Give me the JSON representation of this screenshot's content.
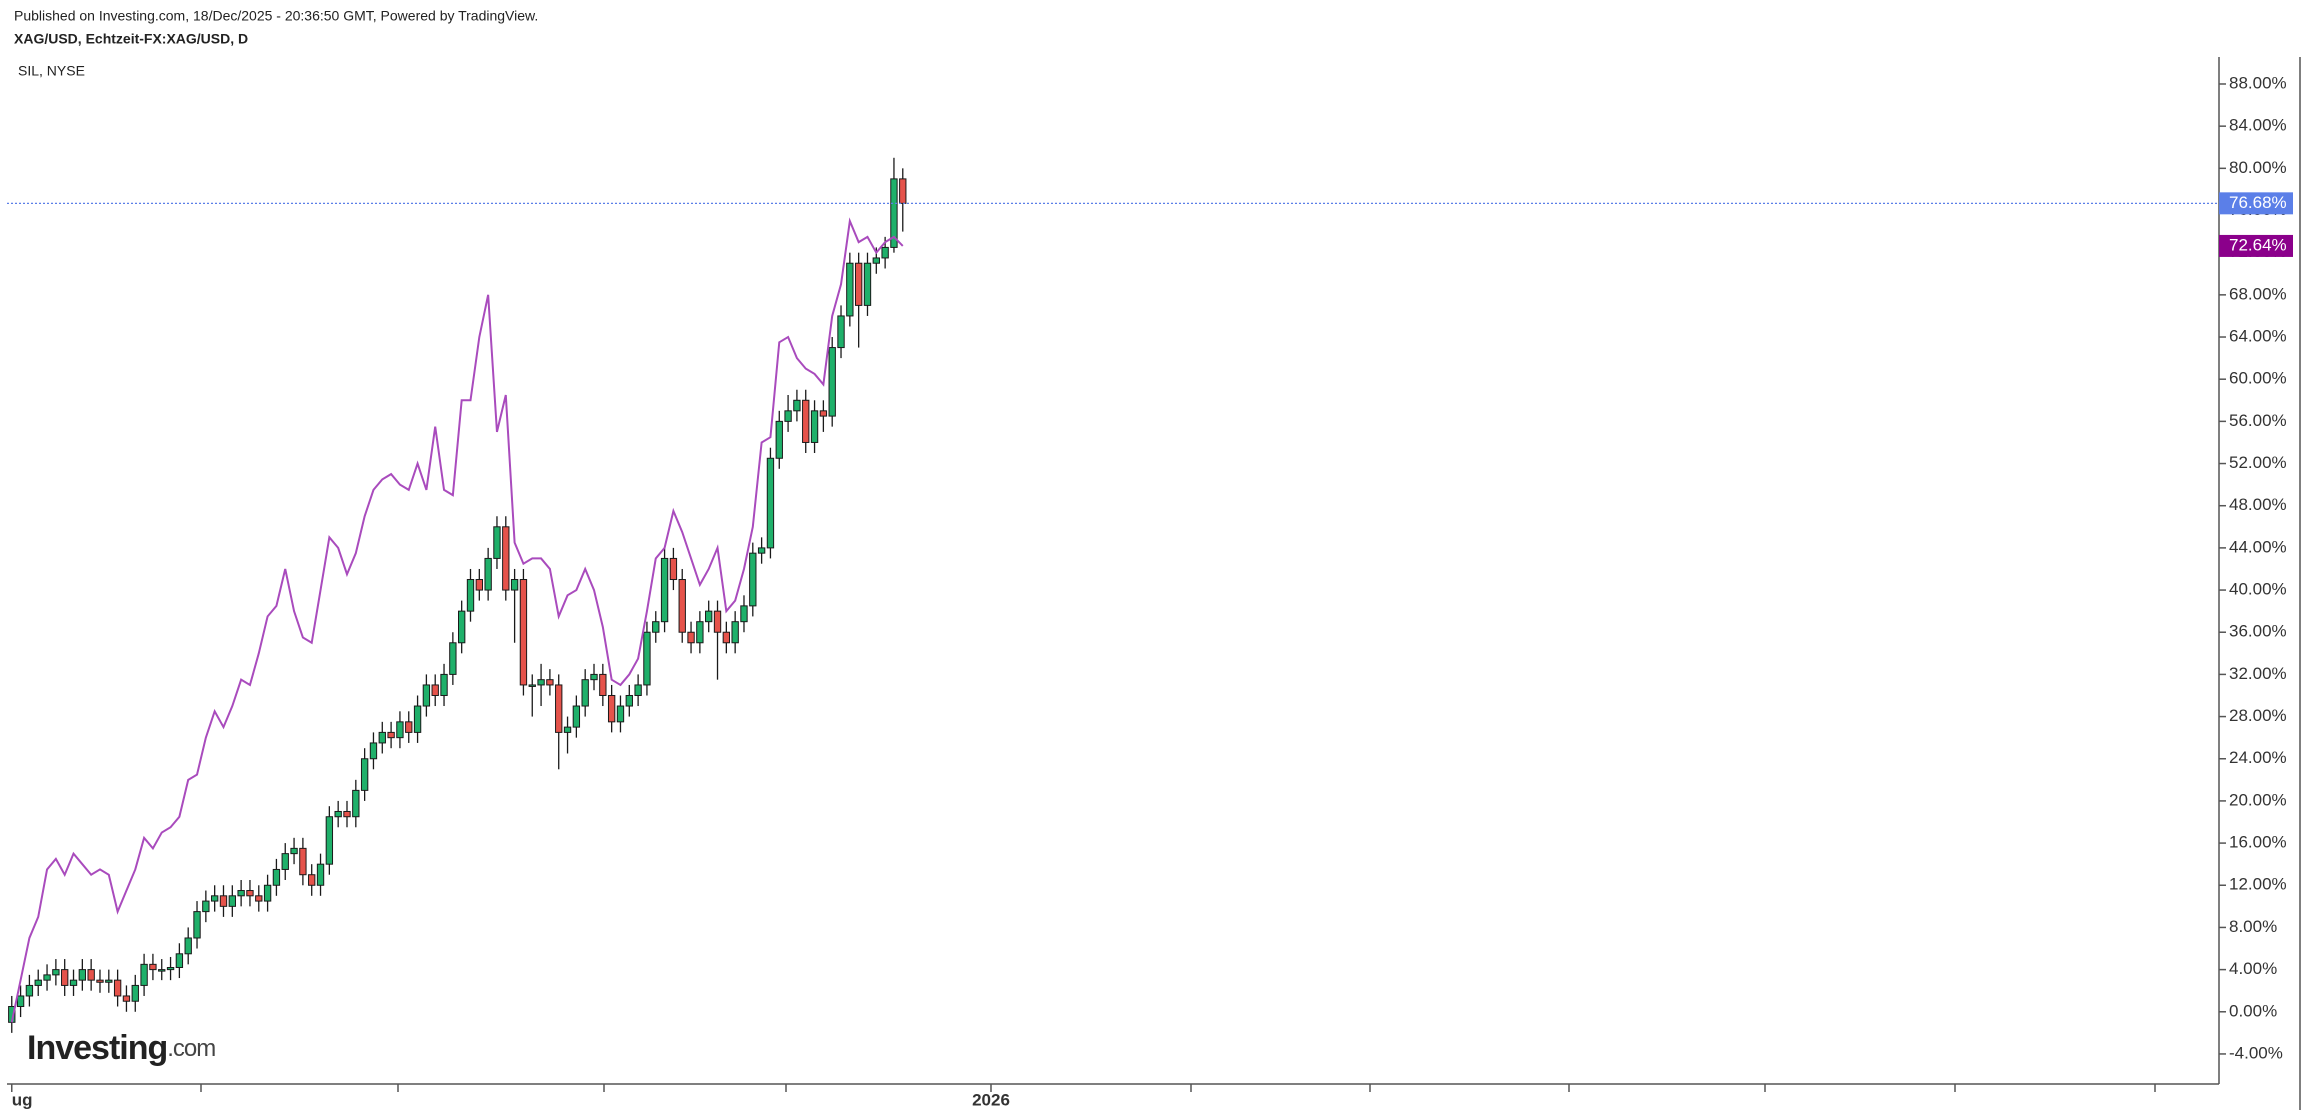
{
  "chart_data": {
    "type": "candlestick",
    "published": "Published on Investing.com, 18/Dec/2025 - 20:36:50 GMT, Powered by TradingView.",
    "logo": {
      "text": "Investing",
      "suffix": ".com"
    },
    "xlim": [
      -0.54,
      250.2
    ],
    "xticks": [
      {
        "value": 0,
        "label": "ug"
      },
      {
        "value": 111,
        "label": "2026"
      }
    ],
    "ylim": [
      -6.85,
      90.56
    ],
    "yticks": [
      {
        "value": -4,
        "label": "-4.00%"
      },
      {
        "value": 0,
        "label": "0.00%"
      },
      {
        "value": 4,
        "label": "4.00%"
      },
      {
        "value": 8,
        "label": "8.00%"
      },
      {
        "value": 12,
        "label": "12.00%"
      },
      {
        "value": 16,
        "label": "16.00%"
      },
      {
        "value": 20,
        "label": "20.00%"
      },
      {
        "value": 24,
        "label": "24.00%"
      },
      {
        "value": 28,
        "label": "28.00%"
      },
      {
        "value": 32,
        "label": "32.00%"
      },
      {
        "value": 36,
        "label": "36.00%"
      },
      {
        "value": 40,
        "label": "40.00%"
      },
      {
        "value": 44,
        "label": "44.00%"
      },
      {
        "value": 48,
        "label": "48.00%"
      },
      {
        "value": 52,
        "label": "52.00%"
      },
      {
        "value": 56,
        "label": "56.00%"
      },
      {
        "value": 60,
        "label": "60.00%"
      },
      {
        "value": 64,
        "label": "64.00%"
      },
      {
        "value": 68,
        "label": "68.00%"
      },
      {
        "value": 72,
        "label": "72.00%"
      },
      {
        "value": 76,
        "label": "76.00%"
      },
      {
        "value": 80,
        "label": "80.00%"
      },
      {
        "value": 84,
        "label": "84.00%"
      },
      {
        "value": 88,
        "label": "88.00%"
      }
    ],
    "series": [
      {
        "name": "XAG/USD, Echtzeit-FX:XAG/USD, D",
        "type": "candlestick",
        "up_color": "#1fb06a",
        "down_color": "#e5534b",
        "last_color": "#5b7fe8",
        "last_label": "76.68%",
        "open": [
          -1,
          0.5,
          1.5,
          2.5,
          3,
          3.5,
          4,
          2.5,
          3,
          4,
          3,
          2.8,
          3,
          1.5,
          1,
          2.5,
          4.5,
          4,
          4,
          4.2,
          5.5,
          7,
          9.5,
          10.5,
          11,
          10,
          11,
          11.5,
          11,
          10.5,
          12,
          13.5,
          15,
          15.5,
          13,
          12,
          14,
          18.5,
          19,
          18.5,
          21,
          24,
          25.5,
          26.5,
          26,
          27.5,
          26.5,
          29,
          31,
          30,
          32,
          35,
          38,
          41,
          40,
          43,
          46,
          40,
          41,
          31,
          31,
          31.5,
          31,
          26.5,
          27,
          29,
          31.5,
          32,
          30,
          27.5,
          29,
          30,
          31,
          36,
          37,
          43,
          41,
          36,
          35,
          37,
          38,
          36,
          35,
          37,
          38.5,
          43.5,
          44,
          52.5,
          56,
          57,
          58,
          54,
          57,
          56.5,
          63,
          66,
          71,
          67,
          71,
          71.5,
          72.5,
          79
        ],
        "high": [
          1.5,
          2.5,
          3.5,
          4,
          4.5,
          5,
          5,
          4,
          5,
          5,
          4,
          4,
          4,
          2.5,
          3.5,
          5.5,
          5.5,
          5,
          5.2,
          6.5,
          8,
          10.5,
          11.5,
          12,
          12,
          12,
          12.5,
          12.5,
          12,
          13,
          14.5,
          16,
          16.5,
          16.5,
          14,
          15,
          19.5,
          20,
          20,
          22,
          25,
          26.5,
          27.5,
          27.5,
          28.5,
          28.5,
          30,
          32,
          32,
          33,
          36,
          39,
          42,
          42,
          44,
          47,
          47,
          42,
          42,
          32,
          33,
          32.5,
          32,
          28,
          30,
          32.5,
          33,
          33,
          31,
          30,
          31,
          32,
          37,
          38,
          44,
          44,
          42,
          37,
          38,
          39,
          39,
          37,
          38,
          39.5,
          44.5,
          45,
          53.5,
          57,
          58.5,
          59,
          59,
          58,
          58,
          64,
          67,
          72,
          72,
          72,
          72.5,
          73.5,
          81,
          80
        ],
        "low": [
          -2,
          -0.5,
          0.5,
          1.5,
          2,
          2.5,
          1.5,
          1.5,
          2,
          2,
          1.8,
          1.8,
          0.5,
          0,
          0,
          1.5,
          3,
          3,
          3,
          3.2,
          4.5,
          6,
          8.5,
          9.5,
          9,
          9,
          10,
          10,
          9.5,
          9.5,
          11,
          12.5,
          14,
          12,
          11,
          11,
          13,
          17.5,
          17.5,
          17.5,
          20,
          23,
          24.5,
          25,
          25,
          25.5,
          25.5,
          28,
          29,
          29,
          31,
          34,
          37,
          39,
          39,
          42,
          39,
          35,
          30,
          28,
          29,
          30,
          23,
          24.5,
          26,
          28,
          30.5,
          29,
          26.5,
          26.5,
          28,
          29,
          30,
          35,
          36,
          40,
          35,
          34,
          34,
          36,
          31.5,
          34,
          34,
          36,
          37.5,
          42.5,
          43,
          51.5,
          55,
          56,
          53,
          53,
          55,
          55.5,
          62,
          65,
          63,
          66,
          70,
          70.5,
          72,
          74
        ],
        "close": [
          0.5,
          1.5,
          2.5,
          3,
          3.5,
          4,
          2.5,
          3,
          4,
          3,
          2.8,
          3,
          1.5,
          1,
          2.5,
          4.5,
          4,
          4,
          4.2,
          5.5,
          7,
          9.5,
          10.5,
          11,
          10,
          11,
          11.5,
          11,
          10.5,
          12,
          13.5,
          15,
          15.5,
          13,
          12,
          14,
          18.5,
          19,
          18.5,
          21,
          24,
          25.5,
          26.5,
          26,
          27.5,
          26.5,
          29,
          31,
          30,
          32,
          35,
          38,
          41,
          40,
          43,
          46,
          40,
          41,
          31,
          31,
          31.5,
          31,
          26.5,
          27,
          29,
          31.5,
          32,
          30,
          27.5,
          29,
          30,
          31,
          36,
          37,
          43,
          41,
          36,
          35,
          37,
          38,
          36,
          35,
          37,
          38.5,
          43.5,
          44,
          52.5,
          56,
          57,
          58,
          54,
          57,
          56.5,
          63,
          66,
          71,
          67,
          71,
          71.5,
          72.5,
          79,
          76.68
        ]
      },
      {
        "name": "SIL, NYSE",
        "type": "line",
        "color": "#a94bbd",
        "last_color": "#8b008b",
        "last_label": "72.64%",
        "values": [
          -1,
          3,
          7,
          9,
          13.5,
          14.5,
          13,
          15,
          14,
          13,
          13.5,
          13,
          9.5,
          11.5,
          13.5,
          16.5,
          15.5,
          17,
          17.5,
          18.5,
          22,
          22.5,
          26,
          28.5,
          27,
          29,
          31.5,
          31,
          34,
          37.5,
          38.5,
          42,
          38,
          35.5,
          35,
          40,
          45,
          44,
          41.5,
          43.5,
          47,
          49.5,
          50.5,
          51,
          50,
          49.5,
          52,
          49.5,
          55.5,
          49.5,
          49,
          58,
          58,
          64,
          68,
          55,
          58.5,
          44.5,
          42.5,
          43,
          43,
          42,
          37.5,
          39.5,
          40,
          42,
          40,
          36.5,
          31.5,
          31,
          32,
          33.5,
          38,
          43,
          44,
          47.5,
          45.5,
          43,
          40.5,
          42,
          44,
          38,
          39,
          42,
          46,
          54,
          54.5,
          63.5,
          64,
          62,
          61,
          60.5,
          59.5,
          66,
          69,
          75,
          73,
          73.5,
          72,
          73,
          73.5,
          72.64
        ]
      }
    ]
  }
}
